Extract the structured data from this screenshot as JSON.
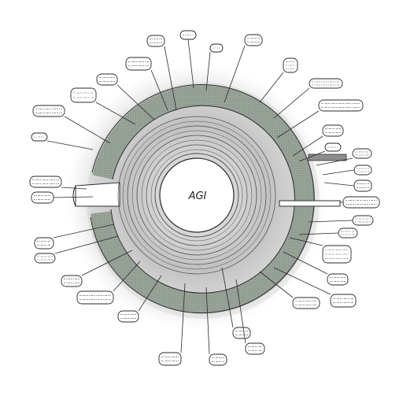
{
  "diagram": {
    "center_label": "AGI",
    "colors": {
      "background": "#ffffff",
      "ink": "#2a2a2a",
      "ring_fill": "#9aa59b",
      "ring_shadow": "#8d8d8d",
      "smudge": "#b5b5b5"
    }
  }
}
